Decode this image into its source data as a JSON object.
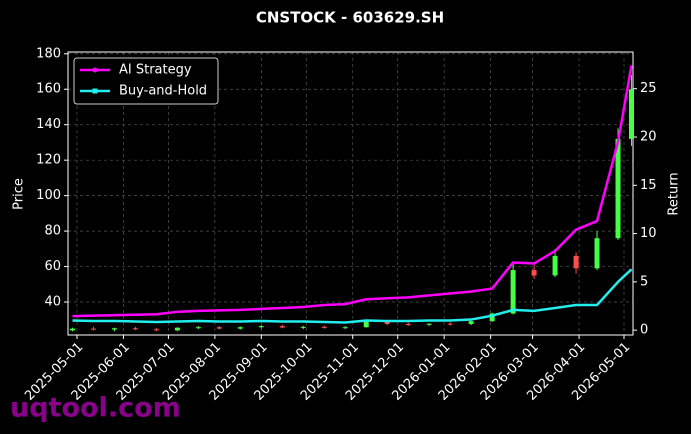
{
  "chart_data": {
    "type": "candlestick",
    "title": "CNSTOCK - 603629.SH",
    "ylabel": "Price",
    "y2label": "Return",
    "watermark": "uqtool.com",
    "x": [
      "2025-04-28",
      "2025-05-12",
      "2025-05-26",
      "2025-06-09",
      "2025-06-23",
      "2025-07-07",
      "2025-07-21",
      "2025-08-04",
      "2025-08-18",
      "2025-09-01",
      "2025-09-15",
      "2025-09-29",
      "2025-10-13",
      "2025-10-27",
      "2025-11-10",
      "2025-11-24",
      "2025-12-08",
      "2025-12-22",
      "2026-01-05",
      "2026-01-19",
      "2026-02-02",
      "2026-02-16",
      "2026-03-02",
      "2026-03-16",
      "2026-03-30",
      "2026-04-13",
      "2026-04-27",
      "2026-05-06"
    ],
    "open": [
      24,
      25,
      24.5,
      25.2,
      24.6,
      24,
      25.5,
      25.8,
      25,
      25.8,
      26.4,
      25.6,
      26,
      25.4,
      25.8,
      28.8,
      27.6,
      27.2,
      27.8,
      27.6,
      29.2,
      33.5,
      58,
      55,
      66,
      59,
      76,
      132
    ],
    "high": [
      25.5,
      26,
      25.5,
      26,
      25.4,
      25.8,
      26.5,
      26.4,
      26.2,
      27,
      27.2,
      26.6,
      26.8,
      26.5,
      29.5,
      29.6,
      28.4,
      28,
      28.6,
      29.5,
      34,
      62,
      61,
      70,
      68,
      80,
      138,
      168
    ],
    "low": [
      23.5,
      24,
      23.5,
      24.2,
      23.6,
      23.5,
      24.8,
      24.6,
      24.5,
      25,
      25.2,
      24.8,
      25,
      24.8,
      25.5,
      27,
      26.5,
      26.4,
      26.8,
      27,
      28.8,
      33,
      53,
      54,
      56,
      58,
      75,
      128
    ],
    "close": [
      25,
      24.5,
      25.2,
      24.6,
      24,
      25.5,
      25.8,
      25,
      25.8,
      26.4,
      25.6,
      26,
      25.4,
      25.8,
      28.8,
      27.6,
      27.2,
      27.8,
      27.6,
      29.2,
      33.5,
      58,
      55,
      66,
      59,
      76,
      132,
      160
    ],
    "up_color": "#44ff44",
    "down_color": "#ff4d4d",
    "series": [
      {
        "name": "AI Strategy",
        "color": "#ff00ff",
        "axis": "y2",
        "values": [
          1.45,
          1.5,
          1.55,
          1.6,
          1.65,
          1.9,
          2.0,
          2.05,
          2.1,
          2.2,
          2.3,
          2.4,
          2.6,
          2.7,
          3.2,
          3.3,
          3.4,
          3.6,
          3.8,
          4.0,
          4.3,
          7.0,
          6.9,
          8.2,
          10.4,
          11.3,
          19.5,
          27.4
        ]
      },
      {
        "name": "Buy-and-Hold",
        "color": "#22eeee",
        "axis": "y2",
        "values": [
          1.0,
          0.95,
          0.95,
          0.9,
          0.85,
          0.9,
          0.95,
          0.9,
          0.9,
          0.95,
          0.9,
          0.9,
          0.85,
          0.8,
          1.0,
          0.95,
          0.95,
          1.0,
          1.0,
          1.1,
          1.5,
          2.1,
          2.0,
          2.3,
          2.6,
          2.6,
          5.0,
          6.3
        ]
      }
    ],
    "xlim": [
      "2025-04-25",
      "2026-05-07"
    ],
    "xticks": [
      "2025-05-01",
      "2025-06-01",
      "2025-07-01",
      "2025-08-01",
      "2025-09-01",
      "2025-10-01",
      "2025-11-01",
      "2025-12-01",
      "2026-01-01",
      "2026-02-01",
      "2026-03-01",
      "2026-04-01",
      "2026-05-01"
    ],
    "ylim": [
      21.4,
      181
    ],
    "yticks": [
      40,
      60,
      80,
      100,
      120,
      140,
      160,
      180
    ],
    "y2lim": [
      -0.5,
      28.8
    ],
    "y2ticks": [
      0,
      5,
      10,
      15,
      20,
      25
    ],
    "grid": true,
    "legend": "upper left"
  }
}
